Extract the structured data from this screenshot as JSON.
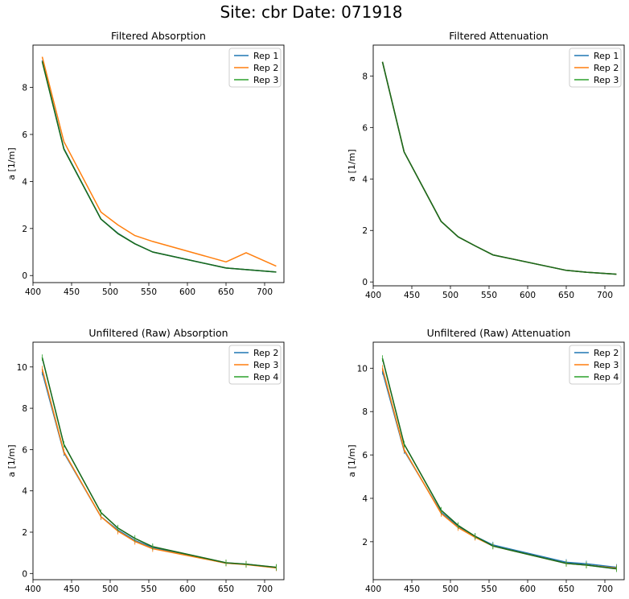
{
  "suptitle": "Site: cbr Date: 071918",
  "chart_data": [
    {
      "type": "line",
      "title": "Filtered Absorption",
      "xlabel": "",
      "ylabel": "a [1/m]",
      "xlim": [
        400,
        725
      ],
      "ylim": [
        -0.3,
        9.8
      ],
      "xticks": [
        400,
        450,
        500,
        550,
        600,
        650,
        700
      ],
      "yticks": [
        0,
        2,
        4,
        6,
        8
      ],
      "legend": "top-right",
      "grid": false,
      "x": [
        412,
        440,
        488,
        510,
        532,
        555,
        650,
        676,
        715
      ],
      "series": [
        {
          "name": "Rep 1",
          "color": "#1f77b4",
          "values": [
            9.15,
            5.4,
            2.4,
            1.8,
            1.35,
            1.0,
            0.32,
            0.25,
            0.15
          ]
        },
        {
          "name": "Rep 2",
          "color": "#ff7f0e",
          "values": [
            9.3,
            5.7,
            2.7,
            2.15,
            1.7,
            1.45,
            0.58,
            0.97,
            0.4
          ]
        },
        {
          "name": "Rep 3",
          "color": "#2ca02c",
          "values": [
            9.1,
            5.38,
            2.4,
            1.78,
            1.35,
            1.0,
            0.32,
            0.25,
            0.15
          ]
        }
      ]
    },
    {
      "type": "line",
      "title": "Filtered Attenuation",
      "xlabel": "",
      "ylabel": "a [1/m]",
      "xlim": [
        400,
        725
      ],
      "ylim": [
        -0.15,
        9.2
      ],
      "xticks": [
        400,
        450,
        500,
        550,
        600,
        650,
        700
      ],
      "yticks": [
        0,
        2,
        4,
        6,
        8
      ],
      "legend": "top-right",
      "grid": false,
      "x": [
        412,
        440,
        488,
        510,
        532,
        555,
        650,
        676,
        715
      ],
      "series": [
        {
          "name": "Rep 1",
          "color": "#1f77b4",
          "values": [
            8.55,
            5.05,
            2.35,
            1.75,
            1.4,
            1.05,
            0.45,
            0.38,
            0.3
          ]
        },
        {
          "name": "Rep 2",
          "color": "#ff7f0e",
          "values": [
            8.55,
            5.05,
            2.35,
            1.75,
            1.4,
            1.05,
            0.45,
            0.38,
            0.3
          ]
        },
        {
          "name": "Rep 3",
          "color": "#2ca02c",
          "values": [
            8.55,
            5.05,
            2.35,
            1.75,
            1.4,
            1.05,
            0.45,
            0.38,
            0.3
          ]
        }
      ]
    },
    {
      "type": "line",
      "title": "Unfiltered (Raw) Absorption",
      "xlabel": "",
      "ylabel": "a [1/m]",
      "xlim": [
        400,
        725
      ],
      "ylim": [
        -0.3,
        11.2
      ],
      "xticks": [
        400,
        450,
        500,
        550,
        600,
        650,
        700
      ],
      "yticks": [
        0,
        2,
        4,
        6,
        8,
        10
      ],
      "legend": "top-right",
      "grid": false,
      "x": [
        412,
        440,
        488,
        510,
        532,
        555,
        650,
        676,
        715
      ],
      "series": [
        {
          "name": "Rep 2",
          "color": "#1f77b4",
          "values": [
            9.75,
            5.85,
            2.75,
            2.1,
            1.6,
            1.25,
            0.5,
            0.45,
            0.28
          ]
        },
        {
          "name": "Rep 3",
          "color": "#ff7f0e",
          "values": [
            9.9,
            5.9,
            2.75,
            2.05,
            1.55,
            1.2,
            0.5,
            0.43,
            0.27
          ]
        },
        {
          "name": "Rep 4",
          "color": "#2ca02c",
          "values": [
            10.45,
            6.25,
            2.95,
            2.2,
            1.7,
            1.3,
            0.52,
            0.45,
            0.3
          ]
        }
      ],
      "error_bars": true
    },
    {
      "type": "line",
      "title": "Unfiltered (Raw) Attenuation",
      "xlabel": "",
      "ylabel": "a [1/m]",
      "xlim": [
        400,
        725
      ],
      "ylim": [
        0.25,
        11.2
      ],
      "xticks": [
        400,
        450,
        500,
        550,
        600,
        650,
        700
      ],
      "yticks": [
        2,
        4,
        6,
        8,
        10
      ],
      "legend": "top-right",
      "grid": false,
      "x": [
        412,
        440,
        488,
        510,
        532,
        555,
        650,
        676,
        715
      ],
      "series": [
        {
          "name": "Rep 2",
          "color": "#1f77b4",
          "values": [
            9.85,
            6.2,
            3.35,
            2.7,
            2.25,
            1.85,
            1.05,
            0.98,
            0.82
          ]
        },
        {
          "name": "Rep 3",
          "color": "#ff7f0e",
          "values": [
            10.0,
            6.25,
            3.3,
            2.65,
            2.2,
            1.8,
            1.0,
            0.92,
            0.78
          ]
        },
        {
          "name": "Rep 4",
          "color": "#2ca02c",
          "values": [
            10.45,
            6.5,
            3.45,
            2.75,
            2.25,
            1.8,
            1.0,
            0.92,
            0.75
          ]
        }
      ],
      "error_bars": true
    }
  ]
}
